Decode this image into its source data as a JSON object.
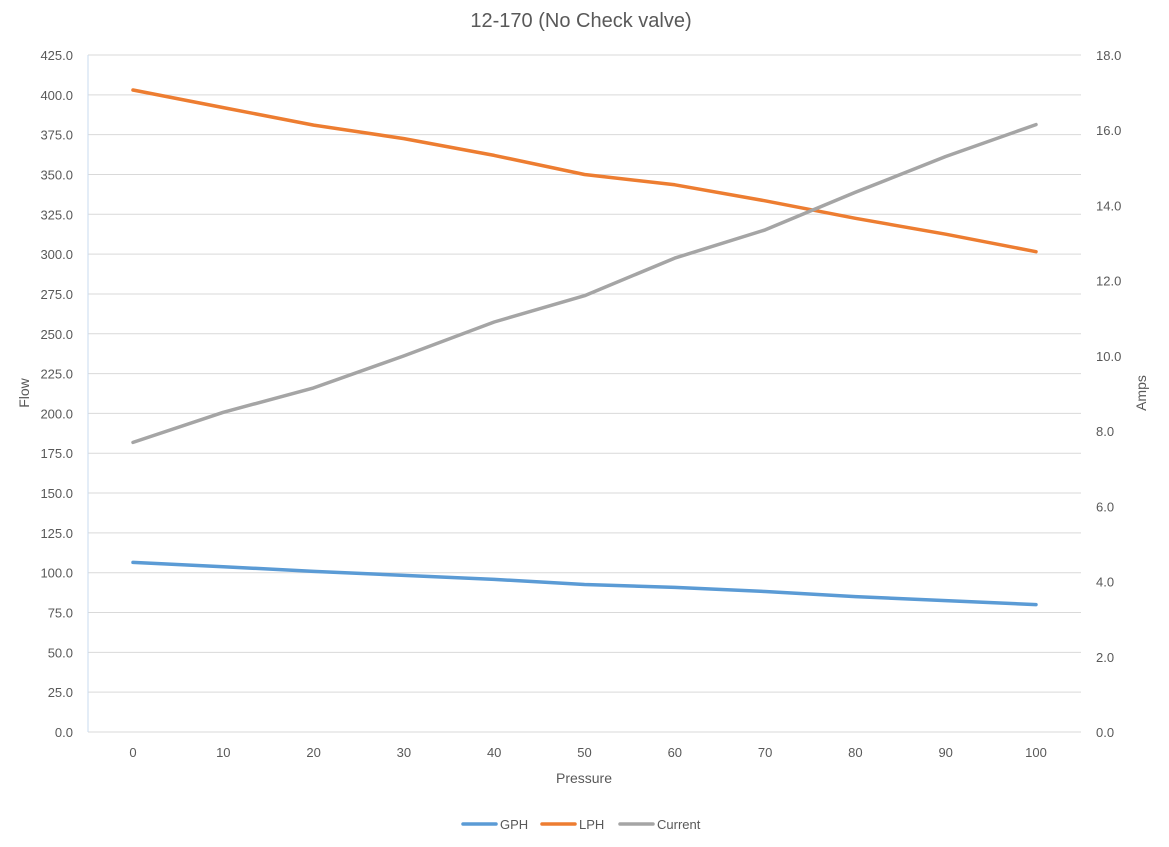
{
  "chart_data": {
    "type": "line",
    "title": "12-170 (No Check valve)",
    "xlabel": "Pressure",
    "ylabel": "Flow",
    "y2label": "Amps",
    "x": [
      0,
      10,
      20,
      30,
      40,
      50,
      60,
      70,
      80,
      90,
      100
    ],
    "x_ticks": [
      "0",
      "10",
      "20",
      "30",
      "40",
      "50",
      "60",
      "70",
      "80",
      "90",
      "100"
    ],
    "ylim": [
      0,
      425
    ],
    "y_ticks": [
      "0.0",
      "25.0",
      "50.0",
      "75.0",
      "100.0",
      "125.0",
      "150.0",
      "175.0",
      "200.0",
      "225.0",
      "250.0",
      "275.0",
      "300.0",
      "325.0",
      "350.0",
      "375.0",
      "400.0",
      "425.0"
    ],
    "y2lim": [
      0,
      18
    ],
    "y2_ticks": [
      "0.0",
      "2.0",
      "4.0",
      "6.0",
      "8.0",
      "10.0",
      "12.0",
      "14.0",
      "16.0",
      "18.0"
    ],
    "grid": true,
    "legend_position": "bottom",
    "series": [
      {
        "name": "GPH",
        "axis": "left",
        "color": "#5B9BD5",
        "values": [
          106.5,
          103.8,
          100.8,
          98.3,
          95.8,
          92.6,
          90.8,
          88.2,
          85.0,
          82.5,
          80.0
        ]
      },
      {
        "name": "LPH",
        "axis": "left",
        "color": "#ED7D31",
        "values": [
          403.0,
          392.0,
          381.0,
          372.5,
          362.0,
          350.0,
          343.5,
          333.5,
          322.5,
          312.5,
          301.5
        ]
      },
      {
        "name": "Current",
        "axis": "right",
        "color": "#A5A5A5",
        "values": [
          7.7,
          8.5,
          9.15,
          10.0,
          10.9,
          11.6,
          12.6,
          13.35,
          14.35,
          15.3,
          16.15
        ]
      }
    ]
  }
}
